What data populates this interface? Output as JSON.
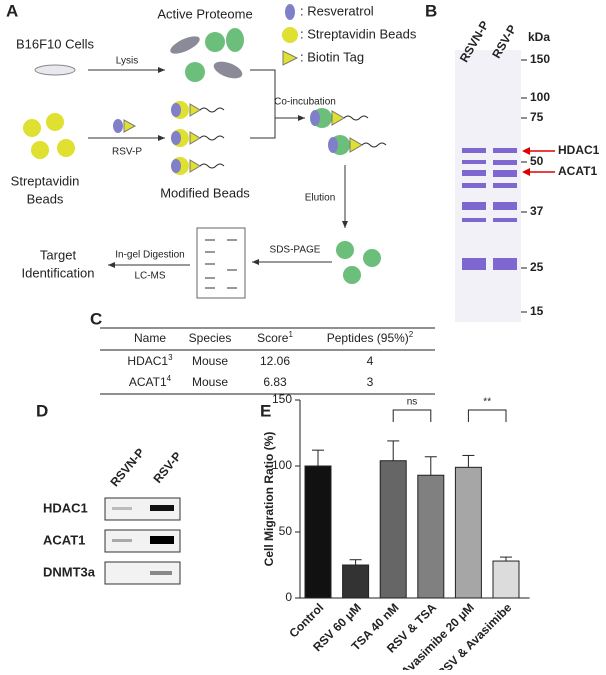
{
  "panel_labels": [
    "A",
    "B",
    "C",
    "D",
    "E"
  ],
  "workflow": {
    "start": "B16F10 Cells",
    "lysis": "Lysis",
    "proteome": "Active Proteome",
    "legend": [
      ": Resveratrol",
      ": Streptavidin Beads",
      ": Biotin Tag"
    ],
    "beads": [
      "Streptavidin",
      "Beads"
    ],
    "probe": "RSV-P",
    "modified": "Modified Beads",
    "coincubation": "Co-incubation",
    "elution": "Elution",
    "sds": "SDS-PAGE",
    "digestion": "In-gel Digestion",
    "lcms": "LC-MS",
    "target": [
      "Target",
      "Identification"
    ]
  },
  "gel": {
    "lanes": [
      "RSVN-P",
      "RSV-P"
    ],
    "unit": "kDa",
    "markers": [
      150,
      100,
      75,
      50,
      37,
      25,
      15
    ],
    "arrows": [
      "HDAC1",
      "ACAT1"
    ]
  },
  "table": {
    "header": [
      {
        "text": "Name"
      },
      {
        "text": "Species"
      },
      {
        "text": "Score",
        "sup": "1"
      },
      {
        "text": "Peptides (95%)",
        "sup": "2"
      }
    ],
    "rows": [
      [
        {
          "text": "HDAC1",
          "sup": "3"
        },
        {
          "text": "Mouse"
        },
        {
          "text": "12.06"
        },
        {
          "text": "4"
        }
      ],
      [
        {
          "text": "ACAT1",
          "sup": "4"
        },
        {
          "text": "Mouse"
        },
        {
          "text": "6.83"
        },
        {
          "text": "3"
        }
      ]
    ]
  },
  "blot": {
    "lanes": [
      "RSVN-P",
      "RSV-P"
    ],
    "proteins": [
      "HDAC1",
      "ACAT1",
      "DNMT3a"
    ]
  },
  "chart_data": {
    "type": "bar",
    "y_label": "Cell Migration Ratio (%)",
    "categories": [
      "Control",
      "RSV 60 μM",
      "TSA 40 nM",
      "RSV & TSA",
      "Avasimibe 20 μM",
      "RSV & Avasimibe"
    ],
    "values": [
      100,
      25,
      104,
      93,
      99,
      28
    ],
    "errors": [
      12,
      4,
      15,
      14,
      9,
      3
    ],
    "colors": [
      "#111111",
      "#333333",
      "#666666",
      "#808080",
      "#a6a6a6",
      "#dcdcdc"
    ],
    "ylim": [
      0,
      150
    ],
    "yticks": [
      0,
      50,
      100,
      150
    ],
    "annotations": [
      "ns",
      "**"
    ]
  }
}
